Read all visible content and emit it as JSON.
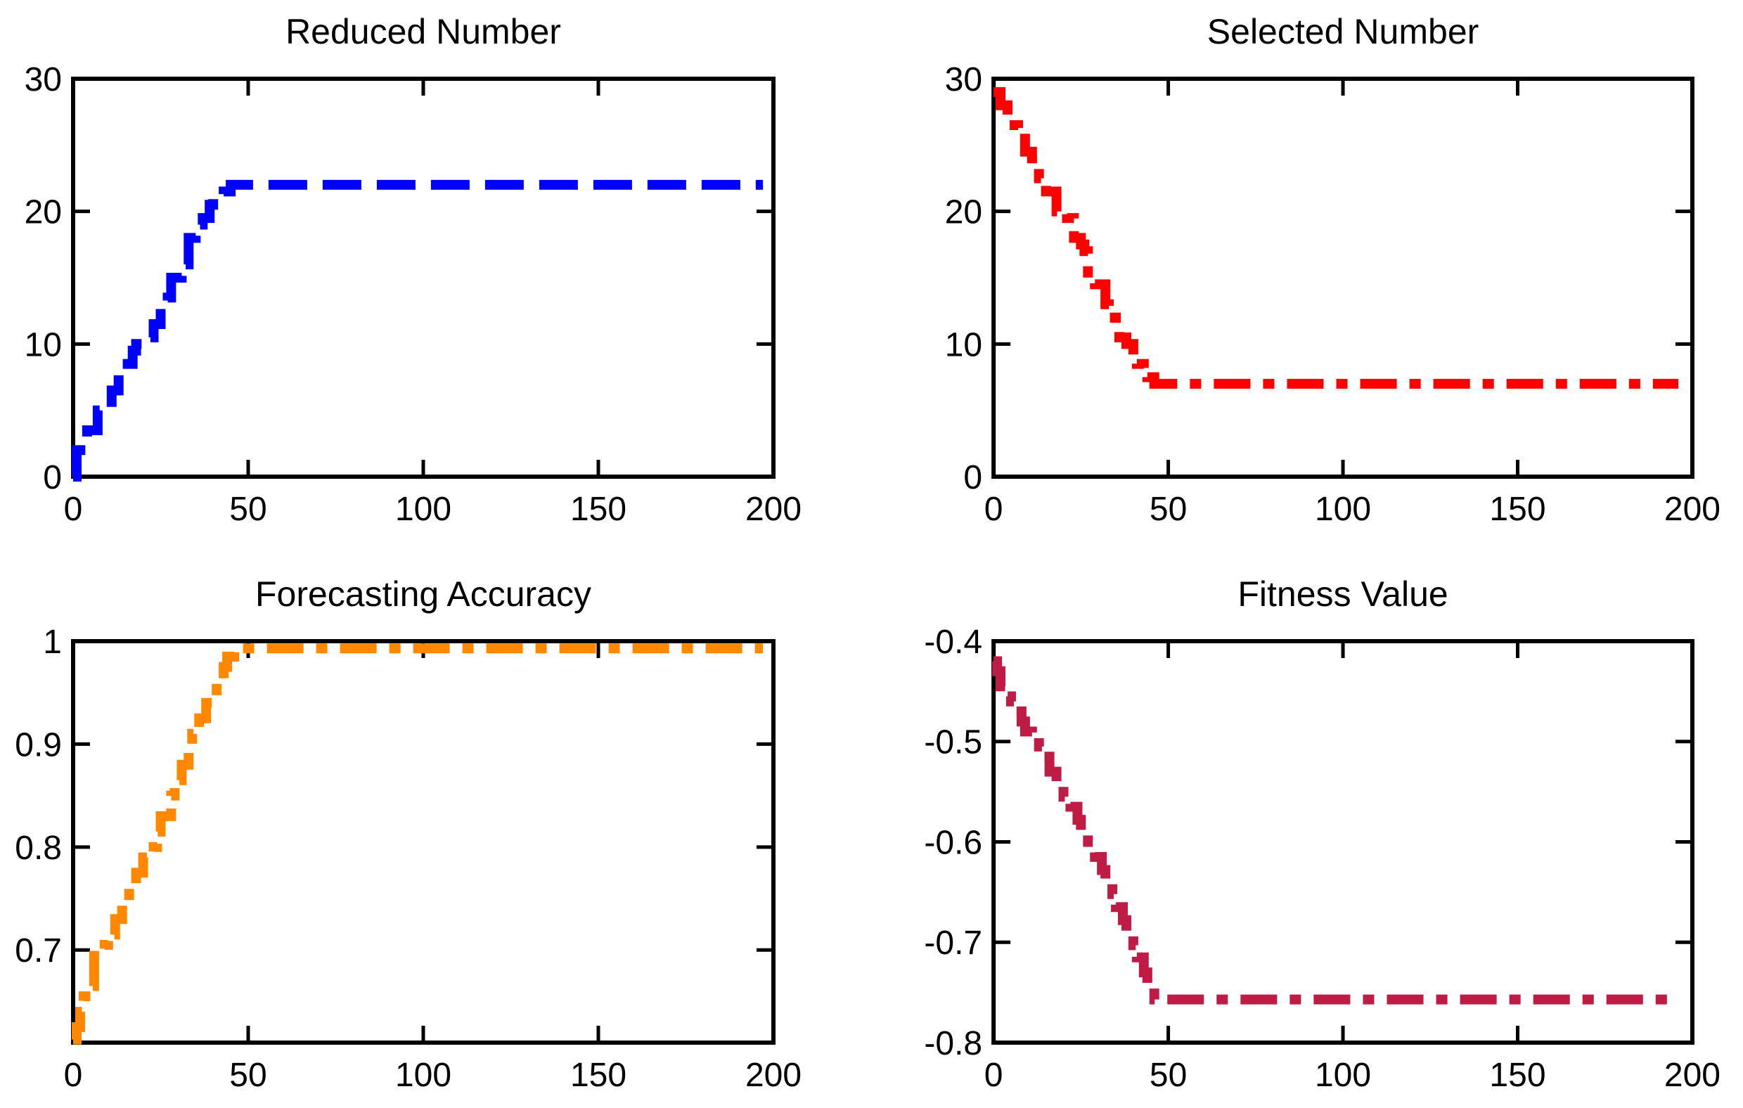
{
  "figure": {
    "background": "#ffffff",
    "axis_color": "#000000",
    "grid": false,
    "legend": null
  },
  "chart_data": [
    {
      "type": "line",
      "title": "Reduced Number",
      "xlabel": "",
      "ylabel": "",
      "line_color": "#0000ff",
      "line_style": "dashed",
      "xlim": [
        0,
        200
      ],
      "ylim": [
        0,
        30
      ],
      "xticks": [
        0,
        50,
        100,
        150,
        200
      ],
      "xtick_labels": [
        "0",
        "50",
        "100",
        "150",
        "200"
      ],
      "yticks": [
        0,
        10,
        20,
        30
      ],
      "ytick_labels": [
        "0",
        "10",
        "20",
        "30"
      ],
      "final_value": 22,
      "points": [
        [
          0,
          0
        ],
        [
          1,
          2
        ],
        [
          3,
          2
        ],
        [
          4,
          3.5
        ],
        [
          6,
          3.5
        ],
        [
          7,
          5
        ],
        [
          10,
          5
        ],
        [
          11,
          6.5
        ],
        [
          12,
          6.5
        ],
        [
          13,
          8.5
        ],
        [
          16,
          8.5
        ],
        [
          17,
          9.5
        ],
        [
          18,
          10
        ],
        [
          21,
          10.5
        ],
        [
          23,
          11.5
        ],
        [
          24,
          11.5
        ],
        [
          25,
          13
        ],
        [
          27,
          13.5
        ],
        [
          28,
          15
        ],
        [
          30,
          15
        ],
        [
          31,
          16
        ],
        [
          32,
          16
        ],
        [
          33,
          18
        ],
        [
          34,
          18
        ],
        [
          35,
          19
        ],
        [
          37,
          19.5
        ],
        [
          39,
          20.5
        ],
        [
          40,
          21
        ],
        [
          42,
          21
        ],
        [
          43,
          21.5
        ],
        [
          45,
          22
        ],
        [
          197,
          22
        ]
      ]
    },
    {
      "type": "line",
      "title": "Selected Number",
      "xlabel": "",
      "ylabel": "",
      "line_color": "#ff0000",
      "line_style": "dashdot",
      "xlim": [
        0,
        200
      ],
      "ylim": [
        0,
        30
      ],
      "xticks": [
        0,
        50,
        100,
        150,
        200
      ],
      "xtick_labels": [
        "0",
        "50",
        "100",
        "150",
        "200"
      ],
      "yticks": [
        0,
        10,
        20,
        30
      ],
      "ytick_labels": [
        "0",
        "10",
        "20",
        "30"
      ],
      "final_value": 7,
      "points": [
        [
          0,
          29
        ],
        [
          2,
          28
        ],
        [
          4,
          26.5
        ],
        [
          7,
          26
        ],
        [
          9,
          24.5
        ],
        [
          11,
          24
        ],
        [
          13,
          22.5
        ],
        [
          15,
          21.5
        ],
        [
          18,
          20
        ],
        [
          21,
          19.5
        ],
        [
          23,
          18
        ],
        [
          25,
          17.5
        ],
        [
          26,
          17
        ],
        [
          27,
          15
        ],
        [
          29,
          14.5
        ],
        [
          32,
          13
        ],
        [
          33,
          12
        ],
        [
          35,
          11
        ],
        [
          36,
          10.5
        ],
        [
          38,
          10
        ],
        [
          40,
          9
        ],
        [
          41,
          8.5
        ],
        [
          43,
          8
        ],
        [
          44,
          7.5
        ],
        [
          46,
          7
        ],
        [
          196,
          7
        ]
      ]
    },
    {
      "type": "line",
      "title": "Forecasting Accuracy",
      "xlabel": "",
      "ylabel": "",
      "line_color": "#ff8800",
      "line_style": "dashdot",
      "xlim": [
        0,
        200
      ],
      "ylim": [
        0.61,
        1.0
      ],
      "xticks": [
        0,
        50,
        100,
        150,
        200
      ],
      "xtick_labels": [
        "0",
        "50",
        "100",
        "150",
        "200"
      ],
      "yticks": [
        0.7,
        0.8,
        0.9,
        1
      ],
      "ytick_labels": [
        "0.7",
        "0.8",
        "0.9",
        "1"
      ],
      "final_value": 0.993,
      "points": [
        [
          0,
          0.613
        ],
        [
          1,
          0.625
        ],
        [
          2,
          0.64
        ],
        [
          3,
          0.655
        ],
        [
          5,
          0.665
        ],
        [
          6,
          0.7
        ],
        [
          9,
          0.705
        ],
        [
          10,
          0.715
        ],
        [
          12,
          0.73
        ],
        [
          14,
          0.745
        ],
        [
          16,
          0.76
        ],
        [
          18,
          0.775
        ],
        [
          20,
          0.79
        ],
        [
          23,
          0.8
        ],
        [
          24,
          0.815
        ],
        [
          25,
          0.83
        ],
        [
          28,
          0.85
        ],
        [
          29,
          0.865
        ],
        [
          31,
          0.88
        ],
        [
          33,
          0.895
        ],
        [
          34,
          0.91
        ],
        [
          36,
          0.925
        ],
        [
          38,
          0.94
        ],
        [
          40,
          0.945
        ],
        [
          41,
          0.96
        ],
        [
          43,
          0.975
        ],
        [
          44,
          0.985
        ],
        [
          46,
          0.993
        ],
        [
          197,
          0.993
        ]
      ]
    },
    {
      "type": "line",
      "title": "Fitness Value",
      "xlabel": "",
      "ylabel": "",
      "line_color": "#be1b45",
      "line_style": "dashdot",
      "xlim": [
        0,
        200
      ],
      "ylim": [
        -0.8,
        -0.4
      ],
      "xticks": [
        0,
        50,
        100,
        150,
        200
      ],
      "xtick_labels": [
        "0",
        "50",
        "100",
        "150",
        "200"
      ],
      "yticks": [
        -0.8,
        -0.7,
        -0.6,
        -0.5,
        -0.4
      ],
      "ytick_labels": [
        "-0.8",
        "-0.7",
        "-0.6",
        "-0.5",
        "-0.4"
      ],
      "final_value": -0.757,
      "points": [
        [
          0,
          -0.42
        ],
        [
          1,
          -0.43
        ],
        [
          2,
          -0.445
        ],
        [
          4,
          -0.455
        ],
        [
          5,
          -0.46
        ],
        [
          6,
          -0.47
        ],
        [
          8,
          -0.48
        ],
        [
          9,
          -0.49
        ],
        [
          11,
          -0.495
        ],
        [
          13,
          -0.505
        ],
        [
          14,
          -0.515
        ],
        [
          16,
          -0.53
        ],
        [
          18,
          -0.545
        ],
        [
          20,
          -0.555
        ],
        [
          22,
          -0.565
        ],
        [
          24,
          -0.578
        ],
        [
          25,
          -0.59
        ],
        [
          27,
          -0.6
        ],
        [
          29,
          -0.615
        ],
        [
          31,
          -0.628
        ],
        [
          32,
          -0.64
        ],
        [
          34,
          -0.652
        ],
        [
          35,
          -0.665
        ],
        [
          37,
          -0.678
        ],
        [
          38,
          -0.69
        ],
        [
          40,
          -0.703
        ],
        [
          41,
          -0.715
        ],
        [
          43,
          -0.73
        ],
        [
          44,
          -0.745
        ],
        [
          46,
          -0.757
        ],
        [
          196,
          -0.757
        ]
      ]
    }
  ]
}
